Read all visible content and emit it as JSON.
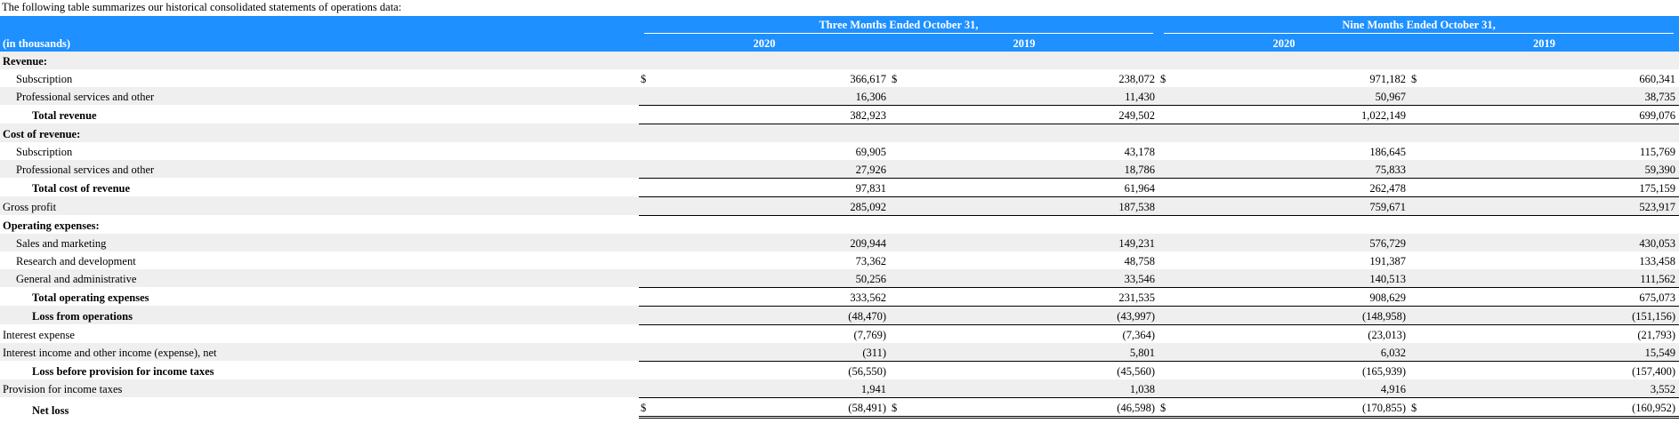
{
  "intro": "The following table summarizes our historical consolidated statements of operations data:",
  "header": {
    "group1": "Three Months Ended October 31,",
    "group2": "Nine Months Ended October 31,",
    "unit_label": "(in thousands)",
    "years": [
      "2020",
      "2019",
      "2020",
      "2019"
    ]
  },
  "rows": {
    "revenue_heading": "Revenue:",
    "subscription": {
      "label": "Subscription",
      "v": [
        "366,617",
        "238,072",
        "971,182",
        "660,341"
      ]
    },
    "prof_services": {
      "label": "Professional services and other",
      "v": [
        "16,306",
        "11,430",
        "50,967",
        "38,735"
      ]
    },
    "total_revenue": {
      "label": "Total revenue",
      "v": [
        "382,923",
        "249,502",
        "1,022,149",
        "699,076"
      ]
    },
    "cost_heading": "Cost of revenue:",
    "cost_subscription": {
      "label": "Subscription",
      "v": [
        "69,905",
        "43,178",
        "186,645",
        "115,769"
      ]
    },
    "cost_prof_services": {
      "label": "Professional services and other",
      "v": [
        "27,926",
        "18,786",
        "75,833",
        "59,390"
      ]
    },
    "total_cost": {
      "label": "Total cost of revenue",
      "v": [
        "97,831",
        "61,964",
        "262,478",
        "175,159"
      ]
    },
    "gross_profit": {
      "label": "Gross profit",
      "v": [
        "285,092",
        "187,538",
        "759,671",
        "523,917"
      ]
    },
    "opex_heading": "Operating expenses:",
    "sales_marketing": {
      "label": "Sales and marketing",
      "v": [
        "209,944",
        "149,231",
        "576,729",
        "430,053"
      ]
    },
    "research_dev": {
      "label": "Research and development",
      "v": [
        "73,362",
        "48,758",
        "191,387",
        "133,458"
      ]
    },
    "general_admin": {
      "label": "General and administrative",
      "v": [
        "50,256",
        "33,546",
        "140,513",
        "111,562"
      ]
    },
    "total_opex": {
      "label": "Total operating expenses",
      "v": [
        "333,562",
        "231,535",
        "908,629",
        "675,073"
      ]
    },
    "loss_ops": {
      "label": "Loss from operations",
      "v": [
        "(48,470)",
        "(43,997)",
        "(148,958)",
        "(151,156)"
      ]
    },
    "interest_expense": {
      "label": "Interest expense",
      "v": [
        "(7,769)",
        "(7,364)",
        "(23,013)",
        "(21,793)"
      ]
    },
    "interest_income": {
      "label": "Interest income and other income (expense), net",
      "v": [
        "(311)",
        "5,801",
        "6,032",
        "15,549"
      ]
    },
    "loss_before_tax": {
      "label": "Loss before provision for income taxes",
      "v": [
        "(56,550)",
        "(45,560)",
        "(165,939)",
        "(157,400)"
      ]
    },
    "provision_tax": {
      "label": "Provision for income taxes",
      "v": [
        "1,941",
        "1,038",
        "4,916",
        "3,552"
      ]
    },
    "net_loss": {
      "label": "Net loss",
      "v": [
        "(58,491)",
        "(46,598)",
        "(170,855)",
        "(160,952)"
      ]
    }
  },
  "currency_symbol": "$"
}
